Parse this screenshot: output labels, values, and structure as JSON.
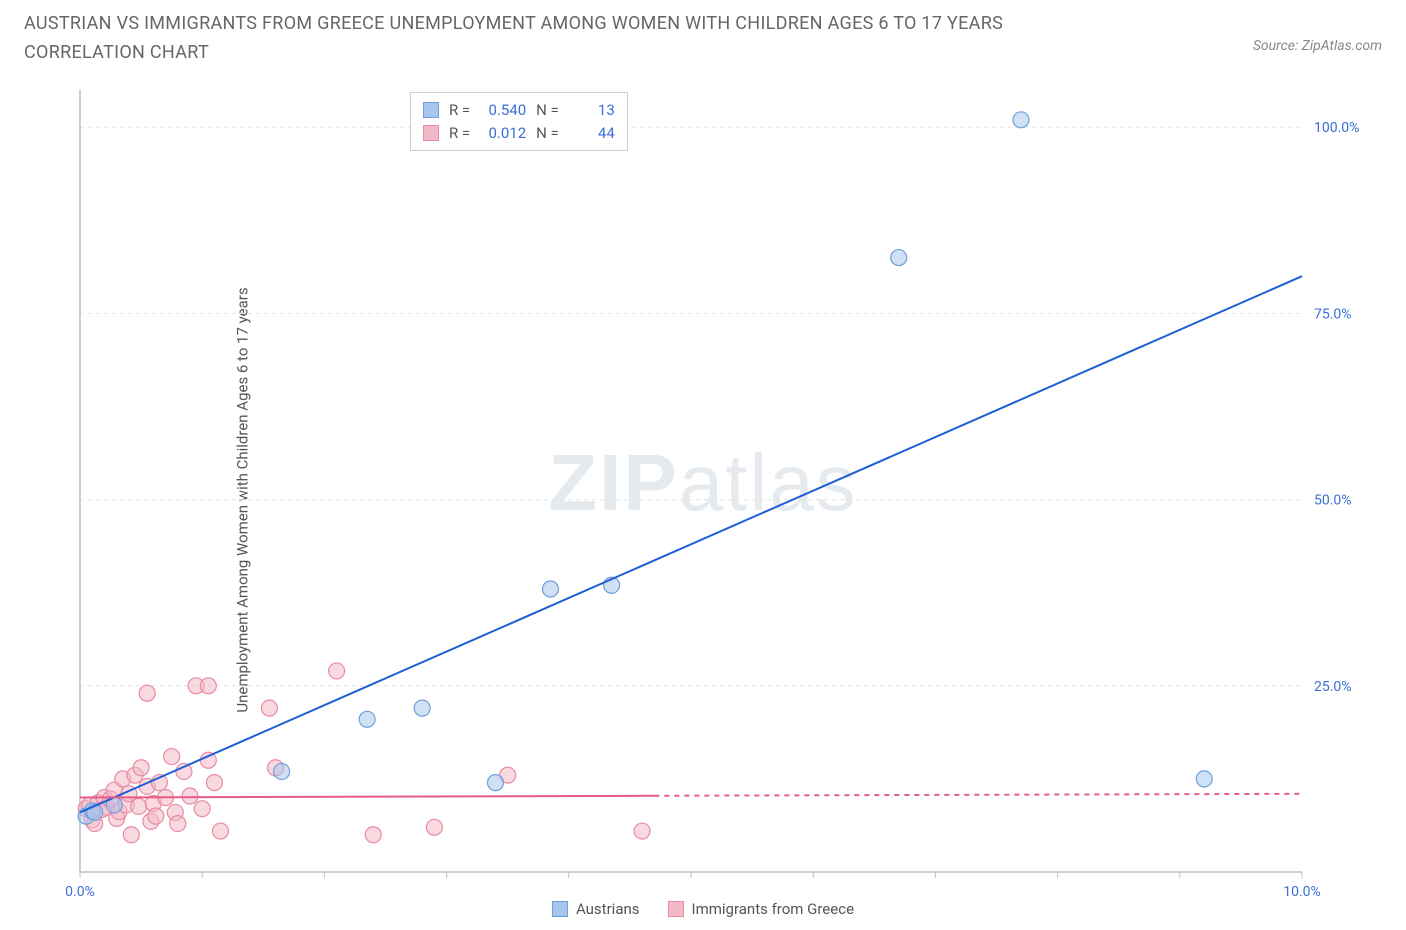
{
  "title": "AUSTRIAN VS IMMIGRANTS FROM GREECE UNEMPLOYMENT AMONG WOMEN WITH CHILDREN AGES 6 TO 17 YEARS CORRELATION CHART",
  "source": "Source: ZipAtlas.com",
  "y_axis_label": "Unemployment Among Women with Children Ages 6 to 17 years",
  "watermark_a": "ZIP",
  "watermark_b": "atlas",
  "chart": {
    "type": "scatter",
    "xlim": [
      0,
      10
    ],
    "ylim": [
      0,
      105
    ],
    "x_ticks": [
      0,
      1,
      2,
      3,
      4,
      5,
      6,
      7,
      8,
      9,
      10
    ],
    "x_tick_labels": {
      "0": "0.0%",
      "10": "10.0%"
    },
    "y_ticks": [
      0,
      25,
      50,
      75,
      100
    ],
    "y_tick_labels": {
      "25": "25.0%",
      "50": "50.0%",
      "75": "75.0%",
      "100": "100.0%"
    },
    "grid_color": "#e3e3e3",
    "axis_color": "#bfbfbf",
    "background_color": "#ffffff",
    "marker_radius": 8,
    "series": [
      {
        "name": "Austrians",
        "color_fill": "#a9c6ec",
        "color_stroke": "#6f9ede",
        "fill_opacity": 0.55,
        "stats": {
          "R": "0.540",
          "N": "13"
        },
        "points": [
          [
            0.05,
            7.5
          ],
          [
            0.1,
            8.2
          ],
          [
            0.12,
            8.0
          ],
          [
            0.28,
            9.0
          ],
          [
            1.65,
            13.5
          ],
          [
            2.35,
            20.5
          ],
          [
            3.4,
            12.0
          ],
          [
            2.8,
            22.0
          ],
          [
            3.85,
            38.0
          ],
          [
            4.35,
            38.5
          ],
          [
            6.7,
            82.5
          ],
          [
            7.7,
            101.0
          ],
          [
            9.2,
            12.5
          ]
        ],
        "regression": {
          "x1": 0,
          "y1": 8.0,
          "x2": 10,
          "y2": 80.0,
          "solid_until_x": 10,
          "color": "#1f5fd6",
          "width": 2
        }
      },
      {
        "name": "Immigrants from Greece",
        "color_fill": "#f3b9c7",
        "color_stroke": "#e98ba5",
        "fill_opacity": 0.55,
        "stats": {
          "R": "0.012",
          "N": "44"
        },
        "points": [
          [
            0.05,
            8.5
          ],
          [
            0.08,
            9.0
          ],
          [
            0.1,
            7.0
          ],
          [
            0.12,
            6.5
          ],
          [
            0.15,
            9.3
          ],
          [
            0.18,
            8.4
          ],
          [
            0.2,
            10.0
          ],
          [
            0.22,
            8.7
          ],
          [
            0.25,
            9.8
          ],
          [
            0.28,
            11.0
          ],
          [
            0.3,
            7.2
          ],
          [
            0.32,
            8.1
          ],
          [
            0.35,
            12.5
          ],
          [
            0.38,
            9.0
          ],
          [
            0.4,
            10.5
          ],
          [
            0.42,
            5.0
          ],
          [
            0.45,
            13.0
          ],
          [
            0.48,
            8.8
          ],
          [
            0.5,
            14.0
          ],
          [
            0.55,
            11.5
          ],
          [
            0.58,
            6.8
          ],
          [
            0.6,
            9.2
          ],
          [
            0.62,
            7.5
          ],
          [
            0.65,
            12.0
          ],
          [
            0.7,
            10.0
          ],
          [
            0.75,
            15.5
          ],
          [
            0.78,
            8.0
          ],
          [
            0.8,
            6.5
          ],
          [
            0.85,
            13.5
          ],
          [
            0.55,
            24.0
          ],
          [
            0.9,
            10.2
          ],
          [
            0.95,
            25.0
          ],
          [
            1.0,
            8.5
          ],
          [
            1.05,
            15.0
          ],
          [
            1.05,
            25.0
          ],
          [
            1.1,
            12.0
          ],
          [
            1.15,
            5.5
          ],
          [
            1.55,
            22.0
          ],
          [
            1.6,
            14.0
          ],
          [
            2.1,
            27.0
          ],
          [
            2.4,
            5.0
          ],
          [
            2.9,
            6.0
          ],
          [
            3.5,
            13.0
          ],
          [
            4.6,
            5.5
          ]
        ],
        "regression": {
          "x1": 0,
          "y1": 10.0,
          "x2": 10,
          "y2": 10.5,
          "solid_until_x": 4.7,
          "color": "#e85b88",
          "width": 2
        }
      }
    ]
  },
  "legend": {
    "series_a": "Austrians",
    "series_b": "Immigrants from Greece"
  },
  "stats_box": {
    "r_label": "R =",
    "n_label": "N ="
  }
}
